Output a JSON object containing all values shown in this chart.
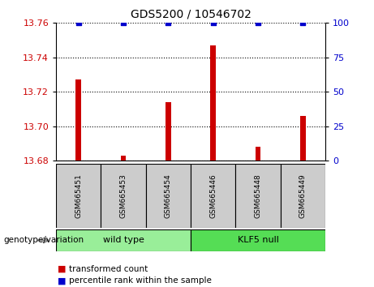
{
  "title": "GDS5200 / 10546702",
  "samples": [
    "GSM665451",
    "GSM665453",
    "GSM665454",
    "GSM665446",
    "GSM665448",
    "GSM665449"
  ],
  "transformed_counts": [
    13.727,
    13.683,
    13.714,
    13.747,
    13.688,
    13.706
  ],
  "percentile_ranks": [
    100,
    100,
    100,
    100,
    100,
    100
  ],
  "bar_color": "#cc0000",
  "percentile_color": "#0000cc",
  "ylim_left": [
    13.68,
    13.76
  ],
  "yticks_left": [
    13.68,
    13.7,
    13.72,
    13.74,
    13.76
  ],
  "ylim_right": [
    0,
    100
  ],
  "yticks_right": [
    0,
    25,
    50,
    75,
    100
  ],
  "groups": [
    {
      "label": "wild type",
      "indices": [
        0,
        1,
        2
      ],
      "color": "#99ee99"
    },
    {
      "label": "KLF5 null",
      "indices": [
        3,
        4,
        5
      ],
      "color": "#55dd55"
    }
  ],
  "genotype_label": "genotype/variation",
  "legend_items": [
    {
      "label": "transformed count",
      "color": "#cc0000"
    },
    {
      "label": "percentile rank within the sample",
      "color": "#0000cc"
    }
  ],
  "background_color": "#ffffff",
  "tick_label_color_left": "#cc0000",
  "tick_label_color_right": "#0000cc",
  "bar_width": 0.12,
  "x_positions": [
    0,
    1,
    2,
    3,
    4,
    5
  ],
  "sample_box_color": "#cccccc",
  "group_box_border": "#000000"
}
